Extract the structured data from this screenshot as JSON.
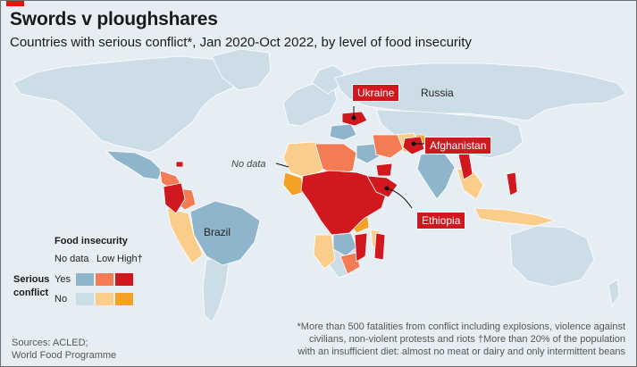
{
  "header": {
    "title": "Swords v ploughshares",
    "subtitle": "Countries with serious conflict*, Jan 2020-Oct 2022, by level of food insecurity"
  },
  "map": {
    "callouts": {
      "ukraine": "Ukraine",
      "afghanistan": "Afghanistan",
      "ethiopia": "Ethiopia"
    },
    "labels": {
      "russia": "Russia",
      "brazil": "Brazil",
      "no_data": "No data"
    }
  },
  "legend": {
    "title": "Food insecurity",
    "columns": [
      "No data",
      "Low",
      "High†"
    ],
    "row_title_line1": "Serious",
    "row_title_line2": "conflict",
    "rows": [
      "Yes",
      "No"
    ],
    "colors": {
      "yes": [
        "#8fb5cc",
        "#f47c54",
        "#d1181f"
      ],
      "no": [
        "#cddde8",
        "#fbcd8b",
        "#f4a126"
      ]
    }
  },
  "footnote": {
    "line1": "*More than 500 fatalities from conflict including explosions, violence against",
    "line2": "civilians, non-violent protests and riots   †More than 20% of the population",
    "line3": "with an insufficient diet: almost no meat or dairy and only intermittent beans"
  },
  "sources": {
    "line1": "Sources: ACLED;",
    "line2": "World Food Programme"
  }
}
